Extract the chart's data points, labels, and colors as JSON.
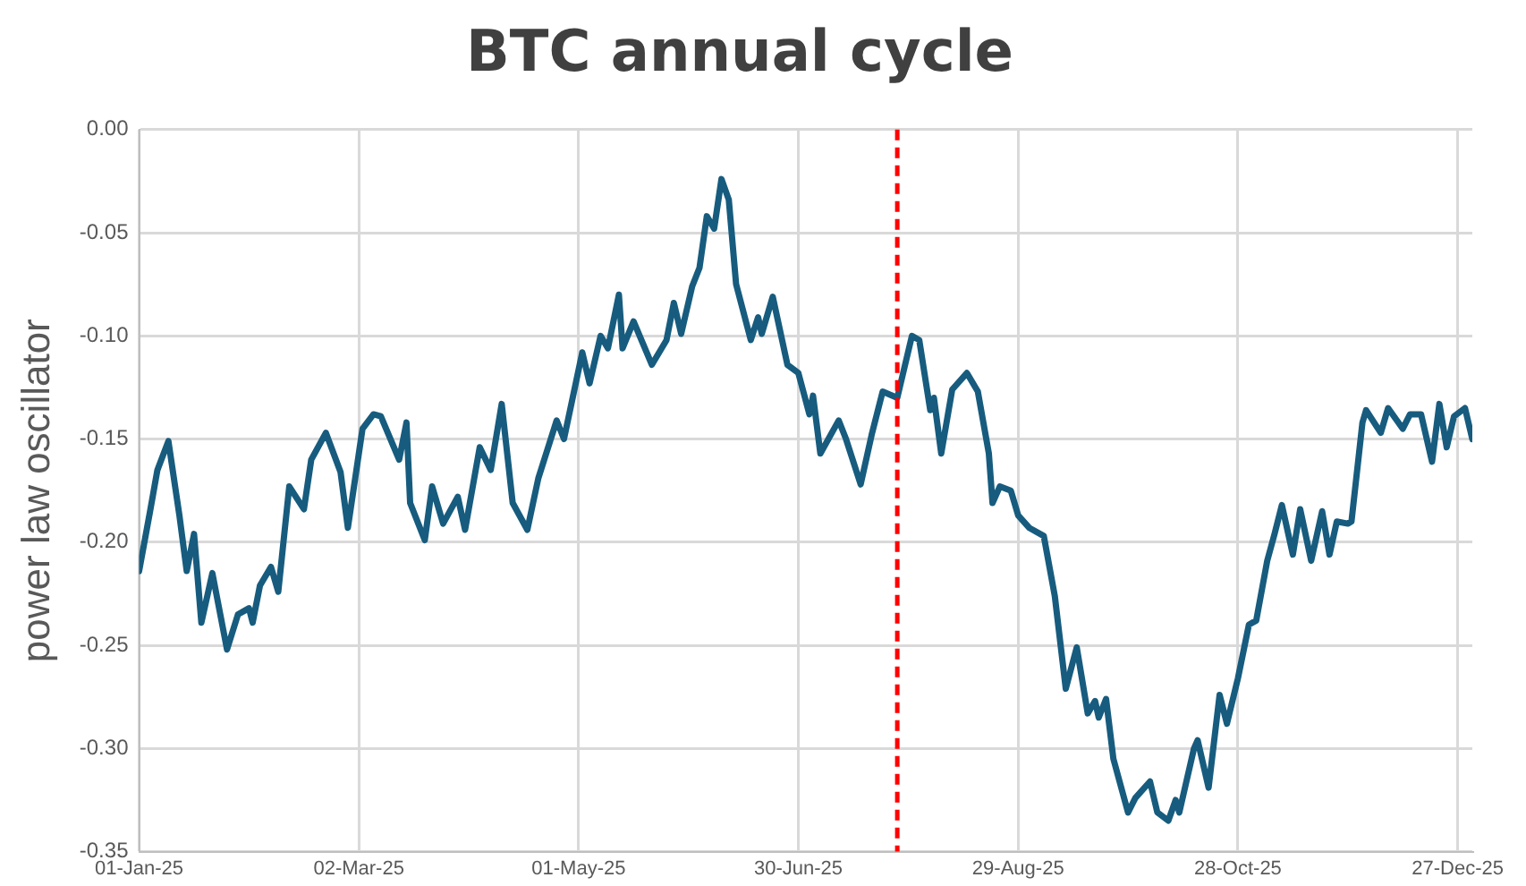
{
  "chart_data": {
    "type": "line",
    "title": "BTC annual cycle",
    "ylabel": "power law oscillator",
    "x": [
      "2025-01-01",
      "2025-01-04",
      "2025-01-06",
      "2025-01-09",
      "2025-01-12",
      "2025-01-14",
      "2025-01-16",
      "2025-01-18",
      "2025-01-21",
      "2025-01-25",
      "2025-01-28",
      "2025-01-31",
      "2025-02-01",
      "2025-02-03",
      "2025-02-06",
      "2025-02-08",
      "2025-02-11",
      "2025-02-15",
      "2025-02-17",
      "2025-02-21",
      "2025-02-25",
      "2025-02-27",
      "2025-03-03",
      "2025-03-06",
      "2025-03-08",
      "2025-03-13",
      "2025-03-15",
      "2025-03-16",
      "2025-03-20",
      "2025-03-22",
      "2025-03-25",
      "2025-03-29",
      "2025-03-31",
      "2025-04-04",
      "2025-04-07",
      "2025-04-10",
      "2025-04-13",
      "2025-04-17",
      "2025-04-20",
      "2025-04-25",
      "2025-04-27",
      "2025-05-02",
      "2025-05-04",
      "2025-05-07",
      "2025-05-09",
      "2025-05-12",
      "2025-05-13",
      "2025-05-16",
      "2025-05-21",
      "2025-05-25",
      "2025-05-27",
      "2025-05-29",
      "2025-06-01",
      "2025-06-03",
      "2025-06-05",
      "2025-06-07",
      "2025-06-09",
      "2025-06-11",
      "2025-06-13",
      "2025-06-17",
      "2025-06-19",
      "2025-06-20",
      "2025-06-23",
      "2025-06-27",
      "2025-06-30",
      "2025-07-03",
      "2025-07-04",
      "2025-07-06",
      "2025-07-11",
      "2025-07-13",
      "2025-07-17",
      "2025-07-20",
      "2025-07-23",
      "2025-07-27",
      "2025-07-31",
      "2025-08-02",
      "2025-08-05",
      "2025-08-06",
      "2025-08-08",
      "2025-08-11",
      "2025-08-15",
      "2025-08-18",
      "2025-08-21",
      "2025-08-22",
      "2025-08-24",
      "2025-08-27",
      "2025-08-29",
      "2025-09-01",
      "2025-09-05",
      "2025-09-08",
      "2025-09-11",
      "2025-09-14",
      "2025-09-17",
      "2025-09-19",
      "2025-09-20",
      "2025-09-22",
      "2025-09-24",
      "2025-09-28",
      "2025-09-30",
      "2025-10-04",
      "2025-10-06",
      "2025-10-09",
      "2025-10-11",
      "2025-10-12",
      "2025-10-16",
      "2025-10-17",
      "2025-10-20",
      "2025-10-23",
      "2025-10-25",
      "2025-10-28",
      "2025-10-31",
      "2025-11-02",
      "2025-11-05",
      "2025-11-07",
      "2025-11-09",
      "2025-11-12",
      "2025-11-14",
      "2025-11-17",
      "2025-11-20",
      "2025-11-22",
      "2025-11-24",
      "2025-11-27",
      "2025-11-28",
      "2025-12-01",
      "2025-12-02",
      "2025-12-06",
      "2025-12-08",
      "2025-12-12",
      "2025-12-14",
      "2025-12-17",
      "2025-12-20",
      "2025-12-22",
      "2025-12-24",
      "2025-12-26",
      "2025-12-29",
      "2025-12-31"
    ],
    "series": [
      {
        "color": "#175c7e",
        "values": [
          -0.214,
          -0.185,
          -0.165,
          -0.151,
          -0.187,
          -0.214,
          -0.196,
          -0.239,
          -0.215,
          -0.252,
          -0.235,
          -0.232,
          -0.239,
          -0.221,
          -0.212,
          -0.224,
          -0.173,
          -0.184,
          -0.16,
          -0.147,
          -0.166,
          -0.193,
          -0.145,
          -0.138,
          -0.139,
          -0.16,
          -0.142,
          -0.181,
          -0.199,
          -0.173,
          -0.191,
          -0.178,
          -0.194,
          -0.154,
          -0.165,
          -0.133,
          -0.181,
          -0.194,
          -0.169,
          -0.141,
          -0.15,
          -0.108,
          -0.123,
          -0.1,
          -0.106,
          -0.08,
          -0.106,
          -0.093,
          -0.114,
          -0.102,
          -0.084,
          -0.099,
          -0.076,
          -0.067,
          -0.042,
          -0.048,
          -0.024,
          -0.034,
          -0.075,
          -0.102,
          -0.091,
          -0.099,
          -0.081,
          -0.114,
          -0.118,
          -0.138,
          -0.129,
          -0.157,
          -0.141,
          -0.15,
          -0.172,
          -0.148,
          -0.127,
          -0.13,
          -0.1,
          -0.102,
          -0.136,
          -0.13,
          -0.157,
          -0.126,
          -0.118,
          -0.127,
          -0.157,
          -0.181,
          -0.173,
          -0.175,
          -0.187,
          -0.193,
          -0.197,
          -0.226,
          -0.271,
          -0.251,
          -0.283,
          -0.277,
          -0.285,
          -0.276,
          -0.305,
          -0.331,
          -0.324,
          -0.316,
          -0.331,
          -0.335,
          -0.325,
          -0.331,
          -0.3,
          -0.296,
          -0.319,
          -0.274,
          -0.288,
          -0.266,
          -0.24,
          -0.238,
          -0.209,
          -0.196,
          -0.182,
          -0.206,
          -0.184,
          -0.209,
          -0.185,
          -0.206,
          -0.19,
          -0.191,
          -0.19,
          -0.142,
          -0.136,
          -0.147,
          -0.135,
          -0.145,
          -0.138,
          -0.138,
          -0.161,
          -0.133,
          -0.154,
          -0.139,
          -0.135,
          -0.15
        ]
      }
    ],
    "xlim": [
      "2025-01-01",
      "2025-12-31"
    ],
    "xticks": [
      {
        "value": "2025-01-01",
        "label": "01-Jan-25"
      },
      {
        "value": "2025-03-02",
        "label": "02-Mar-25"
      },
      {
        "value": "2025-05-01",
        "label": "01-May-25"
      },
      {
        "value": "2025-06-30",
        "label": "30-Jun-25"
      },
      {
        "value": "2025-08-29",
        "label": "29-Aug-25"
      },
      {
        "value": "2025-10-28",
        "label": "28-Oct-25"
      },
      {
        "value": "2025-12-27",
        "label": "27-Dec-25"
      }
    ],
    "ylim": [
      -0.35,
      0
    ],
    "yticks": [
      {
        "value": 0,
        "label": "0.00"
      },
      {
        "value": -0.05,
        "label": "-0.05"
      },
      {
        "value": -0.1,
        "label": "-0.10"
      },
      {
        "value": -0.15,
        "label": "-0.15"
      },
      {
        "value": -0.2,
        "label": "-0.20"
      },
      {
        "value": -0.25,
        "label": "-0.25"
      },
      {
        "value": -0.3,
        "label": "-0.30"
      },
      {
        "value": -0.35,
        "label": "-0.35"
      }
    ],
    "ref_lines": [
      {
        "axis": "x",
        "value": "2025-07-27",
        "color": "#ff0000",
        "line_style": "dashed"
      }
    ],
    "grid": true,
    "legend": false,
    "marker": "none",
    "line_style": "solid"
  }
}
